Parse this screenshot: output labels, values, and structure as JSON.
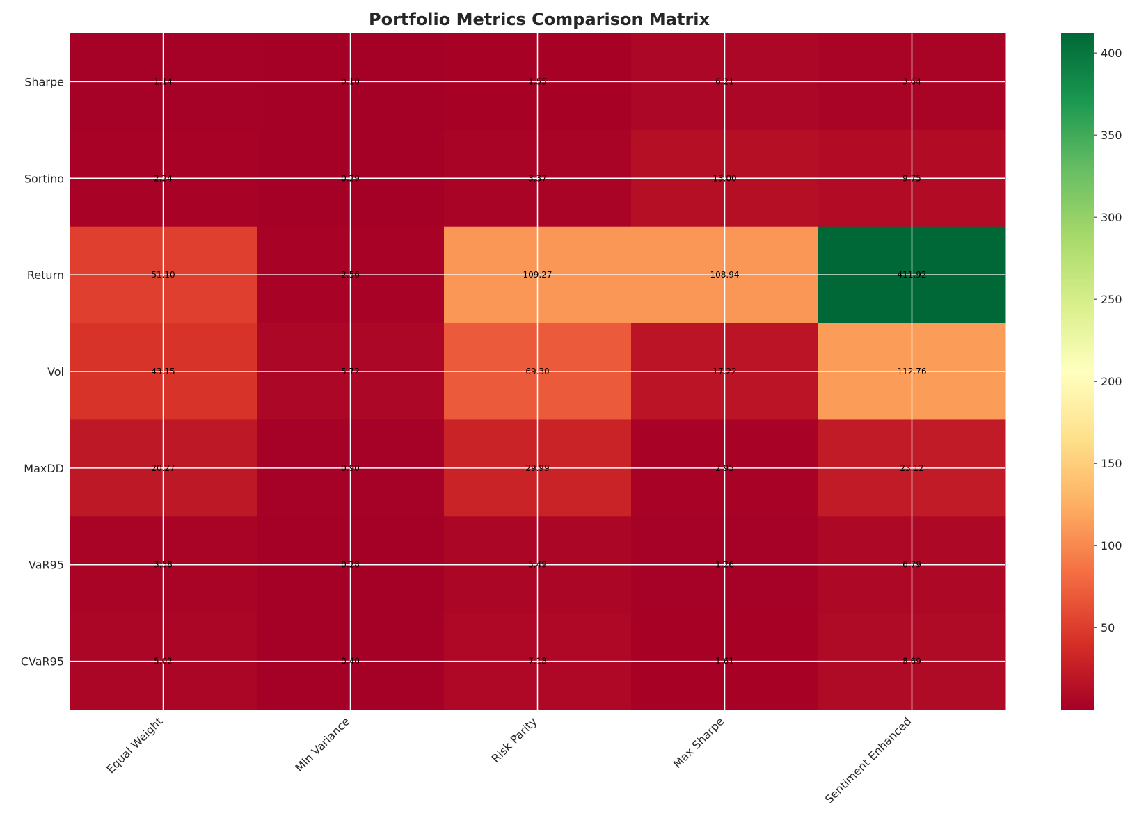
{
  "chart_data": {
    "type": "heatmap",
    "title": "Portfolio Metrics Comparison Matrix",
    "rows": [
      "Sharpe",
      "Sortino",
      "Return",
      "Vol",
      "MaxDD",
      "VaR95",
      "CVaR95"
    ],
    "columns": [
      "Equal Weight",
      "Min Variance",
      "Risk Parity",
      "Max Sharpe",
      "Sentiment Enhanced"
    ],
    "values": [
      [
        1.14,
        0.1,
        1.55,
        6.21,
        3.64
      ],
      [
        2.24,
        0.29,
        3.37,
        13.0,
        9.75
      ],
      [
        51.1,
        2.56,
        109.27,
        108.94,
        411.92
      ],
      [
        43.15,
        5.72,
        69.3,
        17.22,
        112.76
      ],
      [
        20.27,
        0.9,
        29.99,
        2.95,
        23.12
      ],
      [
        3.58,
        0.28,
        5.49,
        1.26,
        6.79
      ],
      [
        5.02,
        0.4,
        7.18,
        1.61,
        8.69
      ]
    ],
    "labels": [
      [
        "1.14",
        "0.10",
        "1.55",
        "6.21",
        "3.64"
      ],
      [
        "2.24",
        "0.29",
        "3.37",
        "13.00",
        "9.75"
      ],
      [
        "51.10",
        "2.56",
        "109.27",
        "108.94",
        "411.92"
      ],
      [
        "43.15",
        "5.72",
        "69.30",
        "17.22",
        "112.76"
      ],
      [
        "20.27",
        "0.90",
        "29.99",
        "2.95",
        "23.12"
      ],
      [
        "3.58",
        "0.28",
        "5.49",
        "1.26",
        "6.79"
      ],
      [
        "5.02",
        "0.40",
        "7.18",
        "1.61",
        "8.69"
      ]
    ],
    "colormap": "RdYlGn",
    "color_range": [
      0.1,
      411.92
    ],
    "colorbar_ticks": [
      50,
      100,
      150,
      200,
      250,
      300,
      350,
      400
    ],
    "colorbar_tick_labels": [
      "50",
      "100",
      "150",
      "200",
      "250",
      "300",
      "350",
      "400"
    ],
    "grid": true,
    "colorbar_position": "right"
  }
}
